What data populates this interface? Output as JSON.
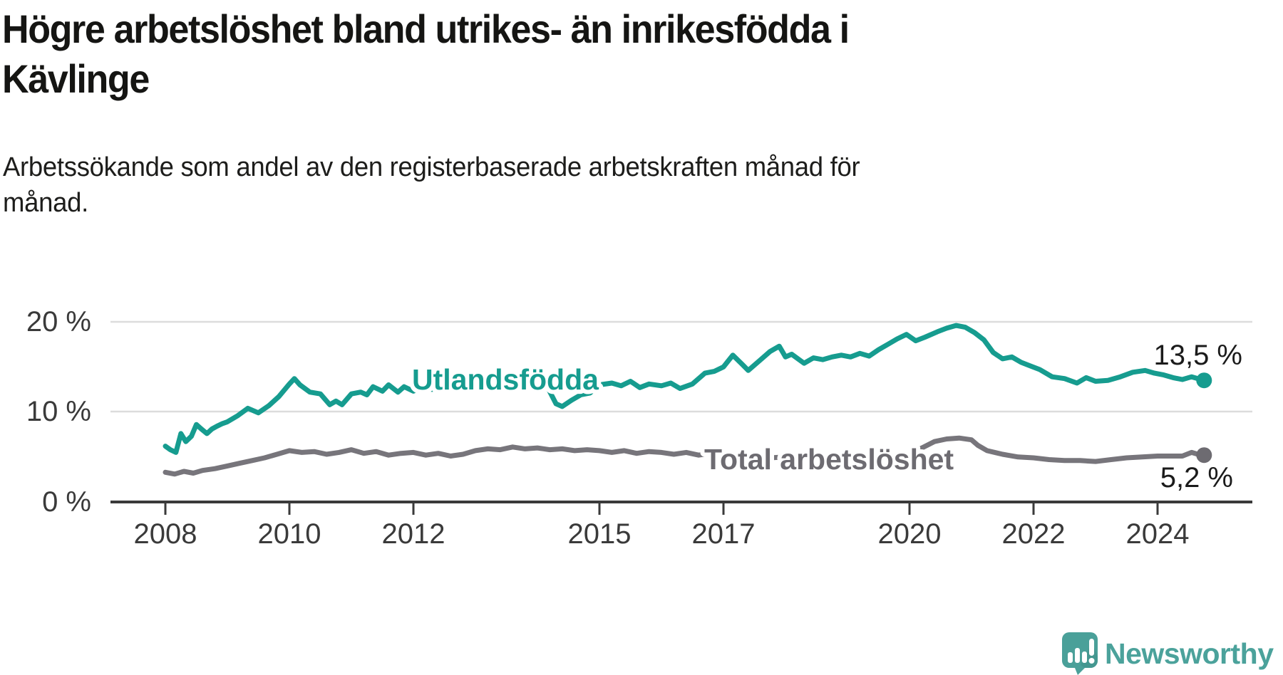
{
  "header": {
    "title_line1": "Högre arbetslöshet bland utrikes- än inrikesfödda i",
    "title_line2": "Kävlinge",
    "subtitle_line1": "Arbetssökande som andel av den registerbaserade arbetskraften månad för",
    "subtitle_line2": "månad."
  },
  "chart_data": {
    "type": "line",
    "title": "Högre arbetslöshet bland utrikes- än inrikesfödda i Kävlinge",
    "subtitle": "Arbetssökande som andel av den registerbaserade arbetskraften månad för månad.",
    "xlabel": "",
    "ylabel": "",
    "grid": "horizontal",
    "legend_position": "inline-labels",
    "x_range": [
      2007.7,
      2025.5
    ],
    "y_range": [
      0,
      22
    ],
    "y_tick_labels": [
      "20 %",
      "10 %",
      "0 %"
    ],
    "y_tick_values": [
      20,
      10,
      0
    ],
    "x_tick_labels": [
      "2008",
      "2010",
      "2012",
      "2015",
      "2017",
      "2020",
      "2022",
      "2024"
    ],
    "x_tick_values": [
      2008,
      2010,
      2012,
      2015,
      2017,
      2020,
      2022,
      2024
    ],
    "series": [
      {
        "name": "Utlandsfödda",
        "color": "#169c8f",
        "end_label": "13,5 %",
        "end_value": 13.5,
        "points": [
          [
            2008.0,
            6.2
          ],
          [
            2008.08,
            5.8
          ],
          [
            2008.17,
            5.5
          ],
          [
            2008.25,
            7.6
          ],
          [
            2008.33,
            6.7
          ],
          [
            2008.42,
            7.3
          ],
          [
            2008.5,
            8.6
          ],
          [
            2008.58,
            8.1
          ],
          [
            2008.67,
            7.6
          ],
          [
            2008.75,
            8.1
          ],
          [
            2008.83,
            8.4
          ],
          [
            2008.92,
            8.7
          ],
          [
            2009.0,
            8.9
          ],
          [
            2009.17,
            9.6
          ],
          [
            2009.33,
            10.4
          ],
          [
            2009.5,
            9.9
          ],
          [
            2009.67,
            10.7
          ],
          [
            2009.83,
            11.7
          ],
          [
            2010.0,
            13.1
          ],
          [
            2010.08,
            13.7
          ],
          [
            2010.17,
            13.0
          ],
          [
            2010.33,
            12.2
          ],
          [
            2010.5,
            12.0
          ],
          [
            2010.65,
            10.8
          ],
          [
            2010.75,
            11.2
          ],
          [
            2010.85,
            10.8
          ],
          [
            2011.0,
            12.0
          ],
          [
            2011.15,
            12.2
          ],
          [
            2011.25,
            11.9
          ],
          [
            2011.35,
            12.8
          ],
          [
            2011.5,
            12.3
          ],
          [
            2011.6,
            13.0
          ],
          [
            2011.75,
            12.2
          ],
          [
            2011.85,
            12.8
          ],
          [
            2012.0,
            12.3
          ],
          [
            2012.15,
            12.8
          ],
          [
            2012.3,
            12.5
          ],
          [
            2012.5,
            12.9
          ],
          [
            2012.65,
            13.1
          ],
          [
            2012.8,
            13.0
          ],
          [
            2013.0,
            13.2
          ],
          [
            2013.2,
            13.4
          ],
          [
            2013.4,
            13.2
          ],
          [
            2013.6,
            13.5
          ],
          [
            2013.8,
            13.3
          ],
          [
            2014.0,
            13.4
          ],
          [
            2014.15,
            12.9
          ],
          [
            2014.3,
            10.9
          ],
          [
            2014.4,
            10.6
          ],
          [
            2014.55,
            11.3
          ],
          [
            2014.7,
            11.9
          ],
          [
            2014.85,
            12.1
          ],
          [
            2015.0,
            13.0
          ],
          [
            2015.2,
            13.2
          ],
          [
            2015.35,
            12.9
          ],
          [
            2015.5,
            13.4
          ],
          [
            2015.65,
            12.7
          ],
          [
            2015.8,
            13.1
          ],
          [
            2016.0,
            12.9
          ],
          [
            2016.15,
            13.2
          ],
          [
            2016.3,
            12.6
          ],
          [
            2016.5,
            13.1
          ],
          [
            2016.7,
            14.3
          ],
          [
            2016.85,
            14.5
          ],
          [
            2017.0,
            15.0
          ],
          [
            2017.15,
            16.3
          ],
          [
            2017.3,
            15.3
          ],
          [
            2017.4,
            14.6
          ],
          [
            2017.6,
            15.8
          ],
          [
            2017.75,
            16.7
          ],
          [
            2017.9,
            17.3
          ],
          [
            2018.0,
            16.1
          ],
          [
            2018.1,
            16.4
          ],
          [
            2018.3,
            15.4
          ],
          [
            2018.45,
            16.0
          ],
          [
            2018.6,
            15.8
          ],
          [
            2018.75,
            16.1
          ],
          [
            2018.9,
            16.3
          ],
          [
            2019.05,
            16.1
          ],
          [
            2019.2,
            16.5
          ],
          [
            2019.35,
            16.2
          ],
          [
            2019.5,
            16.9
          ],
          [
            2019.65,
            17.5
          ],
          [
            2019.8,
            18.1
          ],
          [
            2019.95,
            18.6
          ],
          [
            2020.1,
            17.9
          ],
          [
            2020.25,
            18.3
          ],
          [
            2020.45,
            18.9
          ],
          [
            2020.6,
            19.3
          ],
          [
            2020.75,
            19.6
          ],
          [
            2020.9,
            19.4
          ],
          [
            2021.05,
            18.8
          ],
          [
            2021.2,
            18.0
          ],
          [
            2021.35,
            16.6
          ],
          [
            2021.5,
            15.9
          ],
          [
            2021.65,
            16.1
          ],
          [
            2021.8,
            15.5
          ],
          [
            2021.95,
            15.1
          ],
          [
            2022.1,
            14.7
          ],
          [
            2022.3,
            13.9
          ],
          [
            2022.5,
            13.7
          ],
          [
            2022.7,
            13.2
          ],
          [
            2022.85,
            13.8
          ],
          [
            2023.0,
            13.4
          ],
          [
            2023.2,
            13.5
          ],
          [
            2023.4,
            13.9
          ],
          [
            2023.6,
            14.4
          ],
          [
            2023.8,
            14.6
          ],
          [
            2023.95,
            14.3
          ],
          [
            2024.1,
            14.1
          ],
          [
            2024.25,
            13.8
          ],
          [
            2024.4,
            13.6
          ],
          [
            2024.55,
            13.9
          ],
          [
            2024.75,
            13.5
          ]
        ]
      },
      {
        "name": "Total arbetslöshet",
        "color": "#77757b",
        "label_color": "#6d6b71",
        "end_label": "5,2 %",
        "end_value": 5.2,
        "points": [
          [
            2008.0,
            3.3
          ],
          [
            2008.15,
            3.1
          ],
          [
            2008.3,
            3.4
          ],
          [
            2008.45,
            3.2
          ],
          [
            2008.6,
            3.5
          ],
          [
            2008.8,
            3.7
          ],
          [
            2009.0,
            4.0
          ],
          [
            2009.2,
            4.3
          ],
          [
            2009.4,
            4.6
          ],
          [
            2009.6,
            4.9
          ],
          [
            2009.8,
            5.3
          ],
          [
            2010.0,
            5.7
          ],
          [
            2010.2,
            5.5
          ],
          [
            2010.4,
            5.6
          ],
          [
            2010.6,
            5.3
          ],
          [
            2010.8,
            5.5
          ],
          [
            2011.0,
            5.8
          ],
          [
            2011.2,
            5.4
          ],
          [
            2011.4,
            5.6
          ],
          [
            2011.6,
            5.2
          ],
          [
            2011.8,
            5.4
          ],
          [
            2012.0,
            5.5
          ],
          [
            2012.2,
            5.2
          ],
          [
            2012.4,
            5.4
          ],
          [
            2012.6,
            5.1
          ],
          [
            2012.8,
            5.3
          ],
          [
            2013.0,
            5.7
          ],
          [
            2013.2,
            5.9
          ],
          [
            2013.4,
            5.8
          ],
          [
            2013.6,
            6.1
          ],
          [
            2013.8,
            5.9
          ],
          [
            2014.0,
            6.0
          ],
          [
            2014.2,
            5.8
          ],
          [
            2014.4,
            5.9
          ],
          [
            2014.6,
            5.7
          ],
          [
            2014.8,
            5.8
          ],
          [
            2015.0,
            5.7
          ],
          [
            2015.2,
            5.5
          ],
          [
            2015.4,
            5.7
          ],
          [
            2015.6,
            5.4
          ],
          [
            2015.8,
            5.6
          ],
          [
            2016.0,
            5.5
          ],
          [
            2016.2,
            5.3
          ],
          [
            2016.4,
            5.5
          ],
          [
            2016.6,
            5.2
          ],
          [
            2016.8,
            5.4
          ],
          [
            2017.0,
            5.2
          ],
          [
            2017.25,
            5.0
          ],
          [
            2017.5,
            5.1
          ],
          [
            2017.75,
            4.9
          ],
          [
            2018.0,
            5.0
          ],
          [
            2018.25,
            4.8
          ],
          [
            2018.5,
            5.0
          ],
          [
            2018.75,
            4.9
          ],
          [
            2019.0,
            5.0
          ],
          [
            2019.25,
            4.9
          ],
          [
            2019.5,
            5.1
          ],
          [
            2019.75,
            5.2
          ],
          [
            2020.0,
            5.4
          ],
          [
            2020.2,
            6.0
          ],
          [
            2020.4,
            6.7
          ],
          [
            2020.6,
            7.0
          ],
          [
            2020.8,
            7.1
          ],
          [
            2021.0,
            6.9
          ],
          [
            2021.1,
            6.3
          ],
          [
            2021.25,
            5.7
          ],
          [
            2021.5,
            5.3
          ],
          [
            2021.75,
            5.0
          ],
          [
            2022.0,
            4.9
          ],
          [
            2022.25,
            4.7
          ],
          [
            2022.5,
            4.6
          ],
          [
            2022.75,
            4.6
          ],
          [
            2023.0,
            4.5
          ],
          [
            2023.25,
            4.7
          ],
          [
            2023.5,
            4.9
          ],
          [
            2023.75,
            5.0
          ],
          [
            2024.0,
            5.1
          ],
          [
            2024.2,
            5.1
          ],
          [
            2024.4,
            5.1
          ],
          [
            2024.55,
            5.5
          ],
          [
            2024.65,
            5.3
          ],
          [
            2024.75,
            5.2
          ]
        ]
      }
    ]
  },
  "branding": {
    "logo_text": "Newsworthy",
    "logo_color": "#4ba29b",
    "bubble_color": "#4aa099"
  }
}
